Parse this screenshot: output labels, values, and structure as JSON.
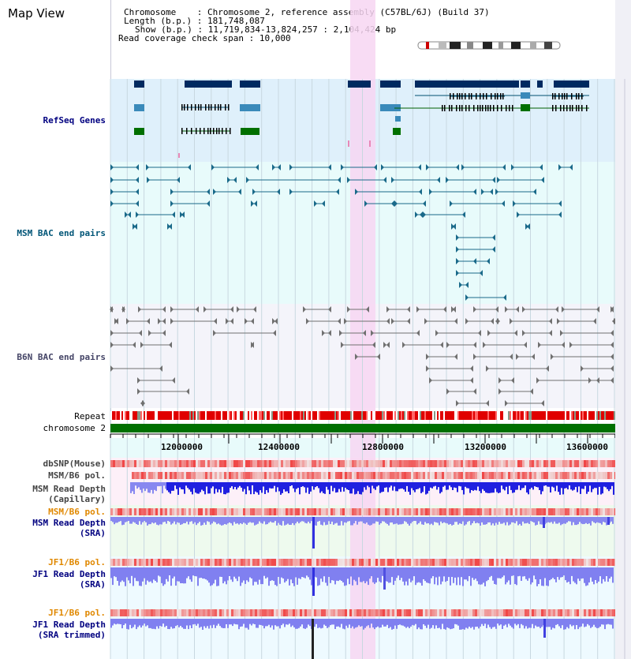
{
  "title": "Map View",
  "header": {
    "chromosome_label": "Chromosome",
    "chromosome_value": "Chromosome 2, reference assembly (C57BL/6J) (Build 37)",
    "length_label": "Length (b.p.)",
    "length_value": "181,748,087",
    "show_label": "Show (b.p.)",
    "show_value": "11,719,834-13,824,257 : 2,104,424 bp",
    "coverage_label": "Read coverage check span",
    "coverage_value": "10,000"
  },
  "tracks": {
    "refseq": "RefSeq Genes",
    "msm_bac": "MSM BAC end pairs",
    "b6n_bac": "B6N BAC end pairs",
    "repeat": "Repeat",
    "chromosome": "chromosome 2",
    "dbsnp": "dbSNP(Mouse)",
    "msm_b6_pol": "MSM/B6 pol.",
    "msm_depth_cap_1": "MSM Read Depth",
    "msm_depth_cap_2": "(Capillary)",
    "msm_b6_pol_2": "MSM/B6 pol.",
    "msm_depth_sra_1": "MSM Read Depth",
    "msm_depth_sra_2": "(SRA)",
    "jf1_b6_pol": "JF1/B6 pol.",
    "jf1_depth_sra_1": "JF1 Read Depth",
    "jf1_depth_sra_2": "(SRA)",
    "jf1_b6_pol_2": "JF1/B6 pol.",
    "jf1_depth_trim_1": "JF1 Read Depth",
    "jf1_depth_trim_2": "(SRA trimmed)"
  },
  "axis_ticks": [
    "12000000",
    "12400000",
    "12800000",
    "13200000",
    "13600000"
  ],
  "colors": {
    "refseq_bg": "#dff0fb",
    "msm_bg": "#e8fbfb",
    "b6n_bg": "#f4f4fa",
    "highlight": "#f7d6f2",
    "chromosome_bar": "#007000",
    "label_navy": "#000080",
    "label_teal": "#005577",
    "label_orange": "#e08800",
    "depth_blue": "#2020e0",
    "depth_light": "#8888f0"
  }
}
